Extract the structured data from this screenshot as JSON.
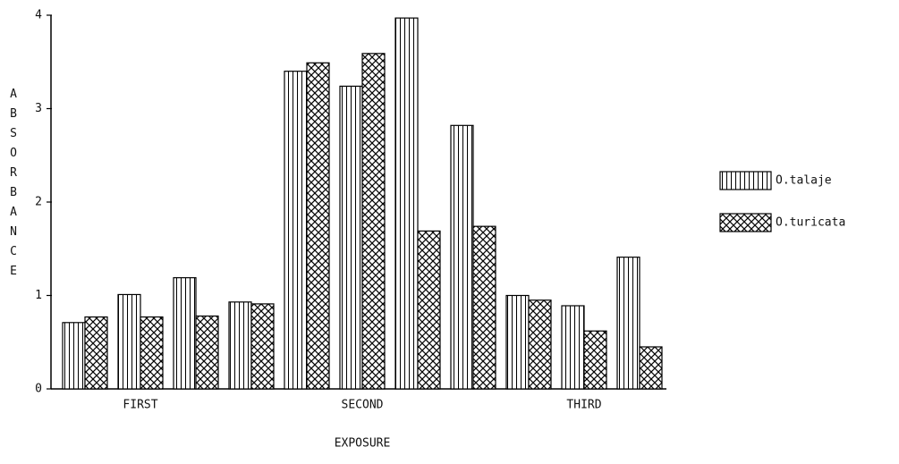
{
  "chart_data": {
    "type": "bar",
    "xlabel": "EXPOSURE",
    "ylabel": "ABSORBANCE",
    "categories": [
      null,
      "FIRST",
      null,
      null,
      null,
      "SECOND",
      null,
      null,
      null,
      "THIRD",
      null
    ],
    "series": [
      {
        "name": "O.talaje",
        "color": "#000000",
        "pattern": "vertical",
        "values": [
          0.71,
          1.01,
          1.19,
          0.93,
          3.4,
          3.24,
          3.97,
          2.82,
          1.0,
          0.89,
          1.41
        ]
      },
      {
        "name": "O.turicata",
        "color": "#000000",
        "pattern": "crosshatch",
        "values": [
          0.77,
          0.77,
          0.78,
          0.91,
          3.49,
          3.59,
          1.69,
          1.74,
          0.95,
          0.62,
          0.45
        ]
      }
    ],
    "ylim": [
      0,
      4
    ],
    "yticks": [
      0,
      1,
      2,
      3,
      4
    ],
    "grid": false,
    "legend": "right"
  }
}
